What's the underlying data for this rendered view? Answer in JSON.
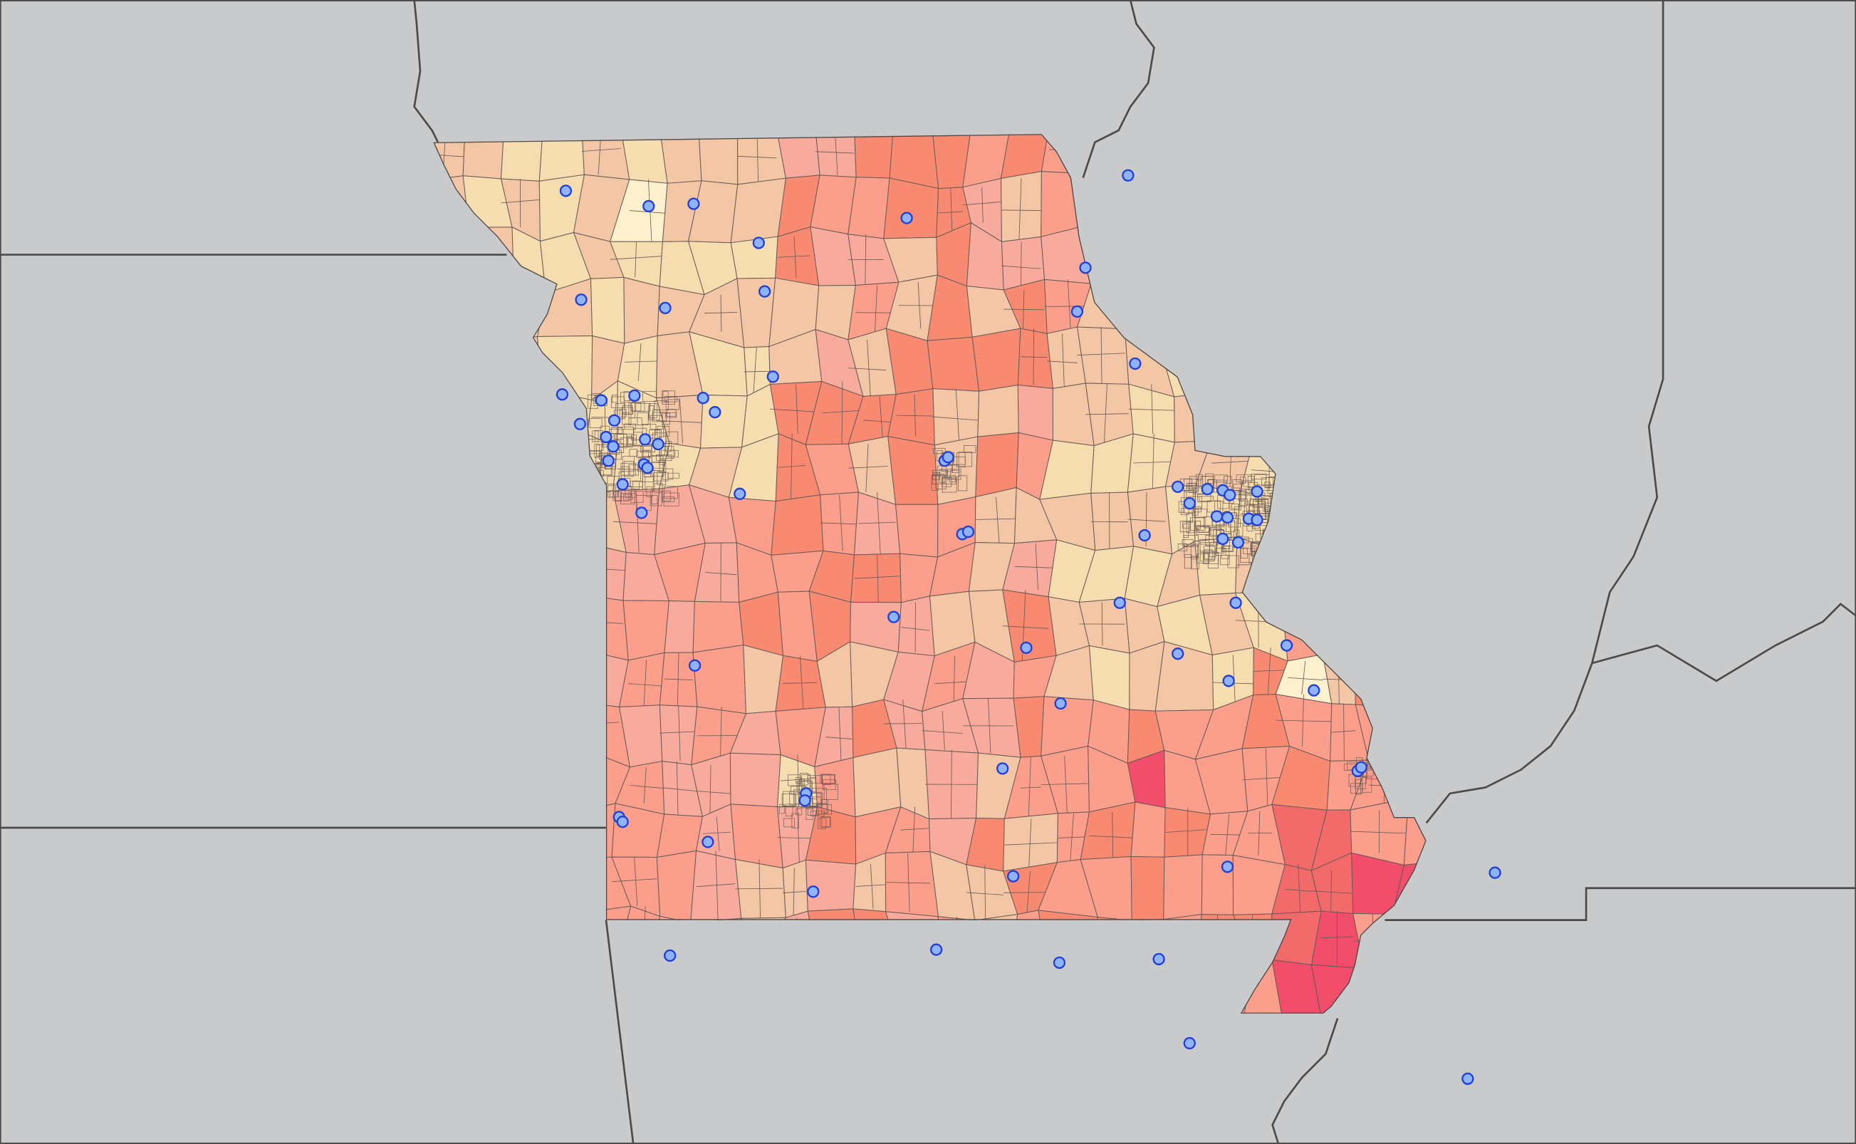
{
  "map": {
    "style": "choropleth",
    "colors": {
      "background_states": "#c9cacc",
      "state_border": "#4a4a4a",
      "tract_border": "#6a5a55",
      "marker_fill": "#8fb3ff",
      "marker_stroke": "#1f3fd8",
      "class_0": "#fdf0cc",
      "class_1": "#f6ddb0",
      "class_2": "#f3c6a5",
      "class_3": "#f8ab9c",
      "class_4": "#fb9f8c",
      "class_5": "#f98a72",
      "class_6": "#f26a6a",
      "class_7": "#f24d6b",
      "class_8": "#c23a63"
    },
    "focus_region": "Missouri",
    "marker_icon": "circle-marker-icon",
    "marker_count": 68
  }
}
